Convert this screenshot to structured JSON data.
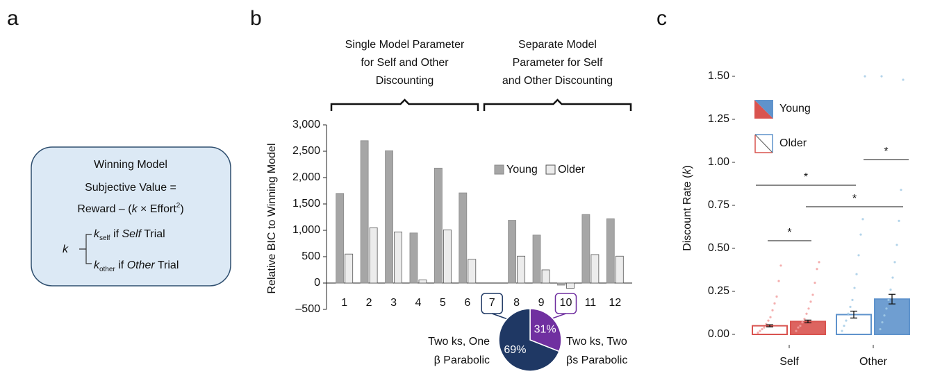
{
  "panel_labels": [
    "a",
    "b",
    "c"
  ],
  "model_box": {
    "title": "Winning Model",
    "equation_1": "Subjective Value =",
    "equation_2": [
      "Reward – (",
      "k",
      " × Effort",
      "2",
      ")"
    ],
    "k": "k",
    "self_line": [
      "k",
      "self",
      " if ",
      "Self",
      " Trial"
    ],
    "other_line": [
      "k",
      "other",
      " if ",
      "Other",
      " Trial"
    ]
  },
  "chart_data": [
    {
      "type": "bar",
      "y_label": "Relative BIC to Winning Model",
      "categories": [
        "1",
        "2",
        "3",
        "4",
        "5",
        "6",
        "7",
        "8",
        "9",
        "10",
        "11",
        "12"
      ],
      "series": [
        {
          "name": "Young",
          "color": "#a6a6a6",
          "values": [
            1700,
            2700,
            2510,
            950,
            2180,
            1710,
            0,
            1190,
            910,
            -40,
            1300,
            1220
          ]
        },
        {
          "name": "Older",
          "color": "#ececec",
          "values": [
            550,
            1050,
            970,
            60,
            1010,
            450,
            0,
            510,
            250,
            -100,
            540,
            510
          ]
        }
      ],
      "ylim": [
        -500,
        3000
      ],
      "yticks": [
        {
          "value": -500,
          "label": "–500"
        },
        0,
        500,
        {
          "value": 1000,
          "label": "1,000"
        },
        {
          "value": 1500,
          "label": "1,500"
        },
        {
          "value": 2000,
          "label": "2,000"
        },
        {
          "value": 2500,
          "label": "2,500"
        },
        {
          "value": 3000,
          "label": "3,000"
        }
      ],
      "group_labels": [
        [
          "Single Model Parameter",
          "for Self and Other",
          "Discounting"
        ],
        [
          "Separate Model",
          "Parameter for Self",
          "and Other Discounting"
        ]
      ]
    },
    {
      "type": "pie",
      "values": [
        69,
        31
      ],
      "value_labels": [
        "69%",
        "31%"
      ],
      "colors": [
        "#1f3864",
        "#7030a0"
      ],
      "labels": [
        [
          "Two ks, One",
          "β Parabolic"
        ],
        [
          "Two ks, Two",
          "βs Parabolic"
        ]
      ]
    },
    {
      "type": "bar",
      "y_label": [
        "Discount Rate (",
        "k",
        ")"
      ],
      "categories": [
        "Self",
        "Other"
      ],
      "series": [
        {
          "name": "Young",
          "colors": [
            "#d9534f",
            "#5f93cc"
          ],
          "values": [
            0.075,
            0.205
          ],
          "errors": [
            0.008,
            0.028
          ],
          "points": [
            [
              0.02,
              0.04,
              0.05,
              0.07,
              0.09,
              0.12,
              0.15,
              0.19,
              0.23,
              0.3,
              0.38,
              0.42
            ],
            [
              0.03,
              0.07,
              0.11,
              0.15,
              0.2,
              0.26,
              0.33,
              0.42,
              0.52,
              0.66,
              0.84,
              1.48,
              1.5
            ]
          ]
        },
        {
          "name": "Older",
          "colors": [
            "#d9534f",
            "#5f93cc"
          ],
          "values": [
            0.05,
            0.115
          ],
          "errors": [
            0.006,
            0.02
          ],
          "points": [
            [
              0.01,
              0.02,
              0.03,
              0.04,
              0.06,
              0.08,
              0.1,
              0.14,
              0.18,
              0.22,
              0.31,
              0.4
            ],
            [
              0.02,
              0.05,
              0.08,
              0.12,
              0.16,
              0.2,
              0.27,
              0.35,
              0.46,
              0.58,
              0.67,
              1.5
            ]
          ]
        }
      ],
      "ylim": [
        -0.05,
        1.58
      ],
      "yticks": [
        {
          "value": 0,
          "label": "0.00"
        },
        0.25,
        {
          "value": 0.5,
          "label": "0.50"
        },
        0.75,
        {
          "value": 1,
          "label": "1.00"
        },
        1.25,
        {
          "value": 1.5,
          "label": "1.50"
        }
      ],
      "significance": [
        "*",
        "*",
        "*",
        "*"
      ]
    }
  ]
}
